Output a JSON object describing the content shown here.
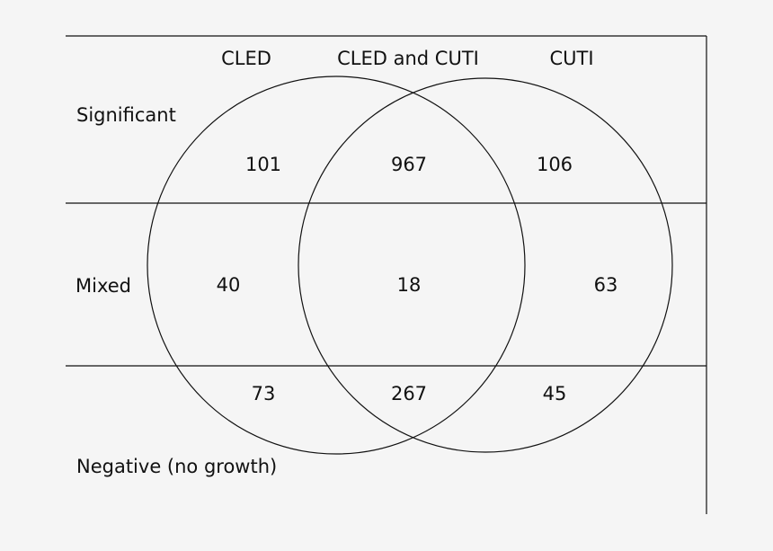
{
  "columns": {
    "left": "CLED",
    "middle": "CLED and CUTI",
    "right": "CUTI"
  },
  "rows": {
    "top": "Significant",
    "middle": "Mixed",
    "bottom": "Negative (no growth)"
  },
  "counts": {
    "significant": {
      "cled": "101",
      "both": "967",
      "cuti": "106"
    },
    "mixed": {
      "cled": "40",
      "both": "18",
      "cuti": "63"
    },
    "negative": {
      "cled": "73",
      "both": "267",
      "cuti": "45"
    }
  },
  "colors": {
    "background": "#f5f5f5",
    "line": "#111111",
    "text": "#111111"
  }
}
